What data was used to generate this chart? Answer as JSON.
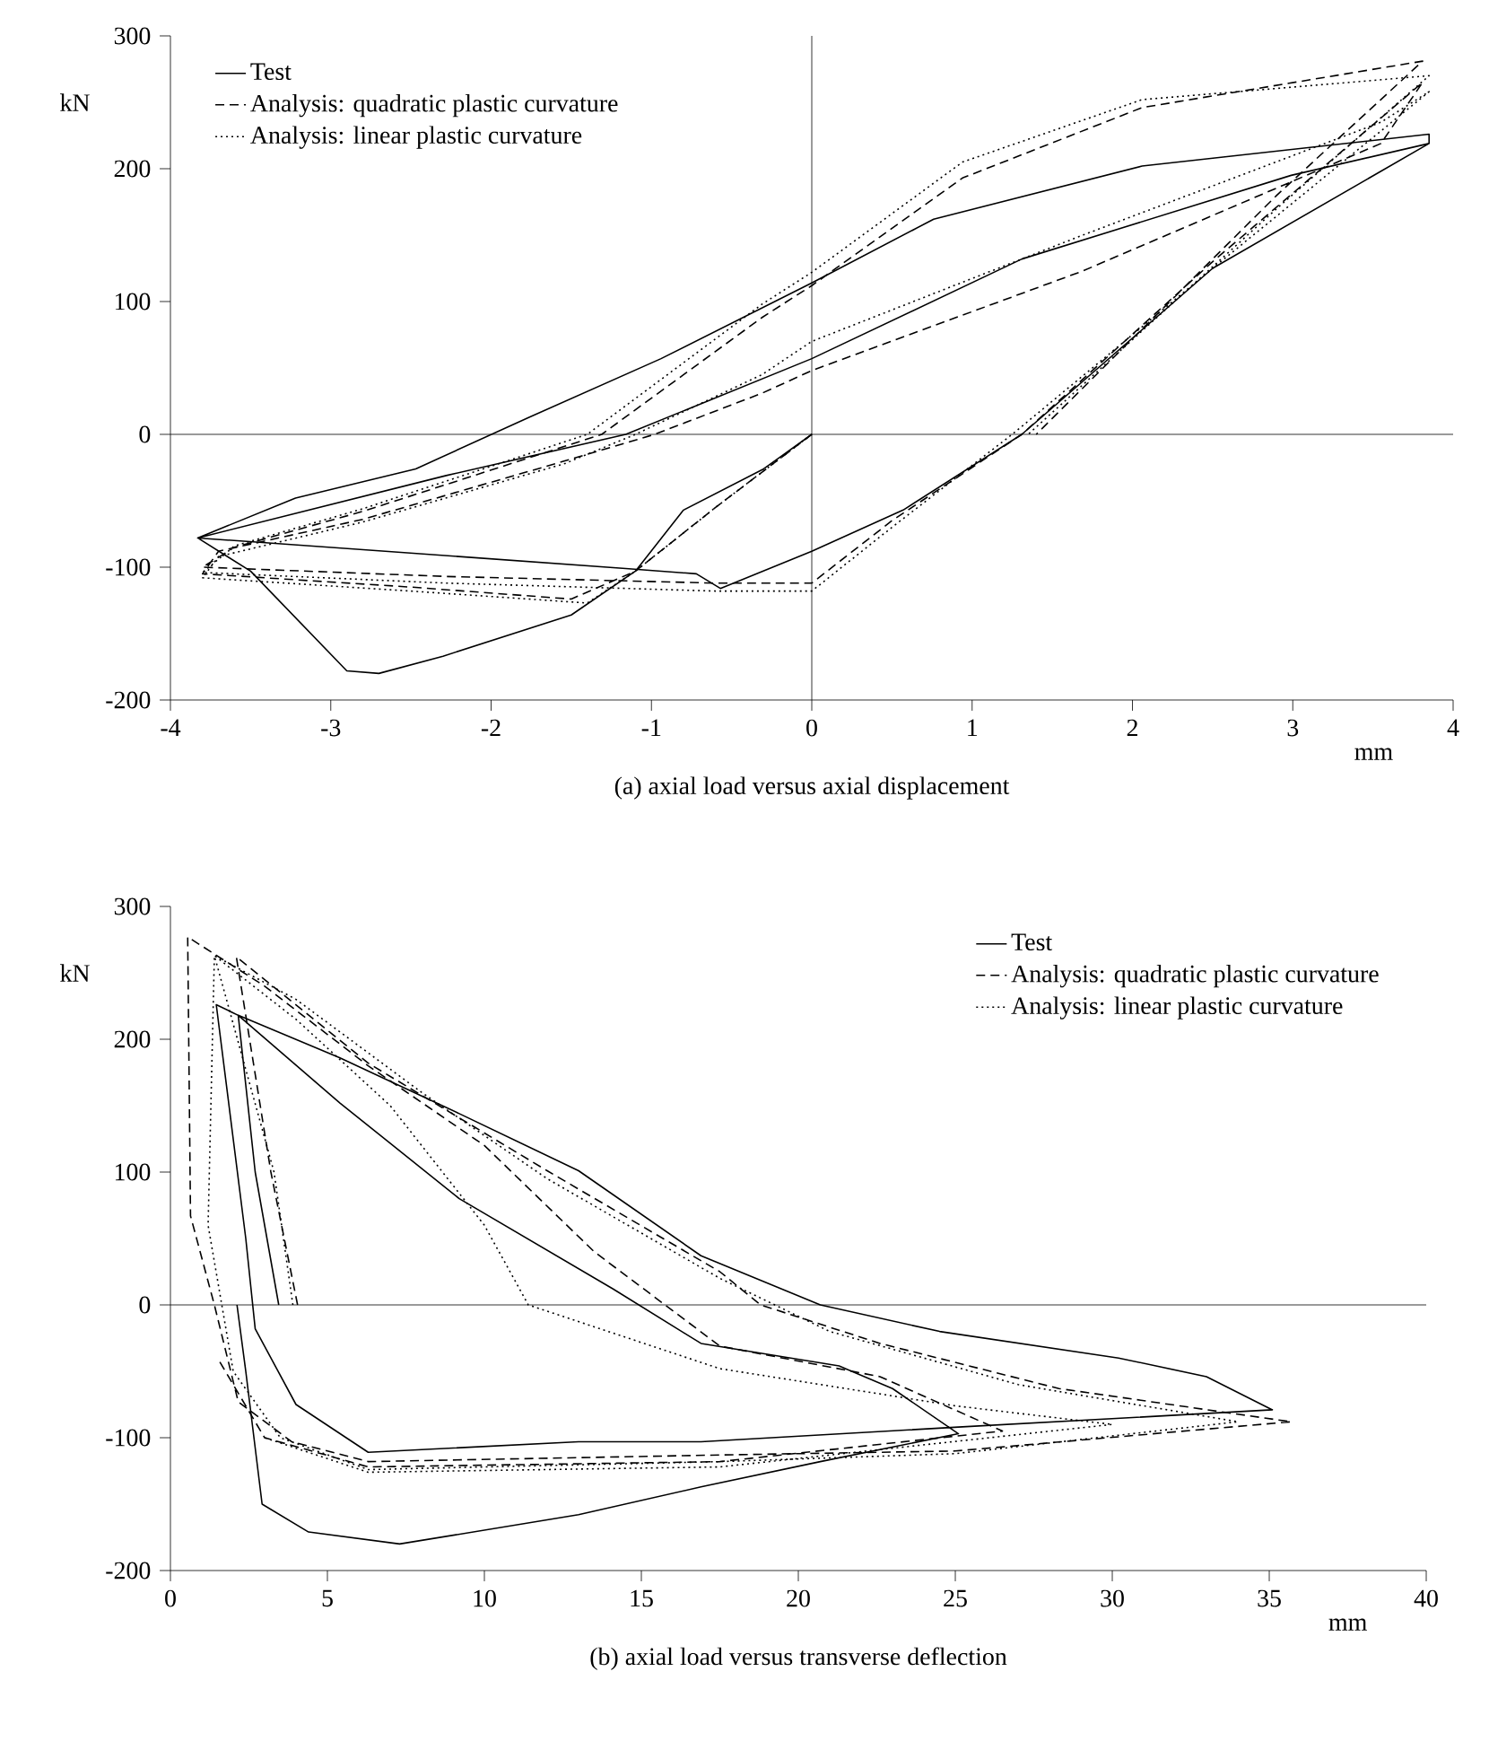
{
  "chart_data": [
    {
      "type": "line",
      "title": "(a) axial load versus axial displacement",
      "xlabel": "mm",
      "ylabel": "kN",
      "xlim": [
        -4,
        4
      ],
      "ylim": [
        -200,
        300
      ],
      "xticks": [
        -4,
        -3,
        -2,
        -1,
        0,
        1,
        2,
        3,
        4
      ],
      "yticks": [
        -200,
        -100,
        0,
        100,
        200,
        300
      ],
      "legend": "top left",
      "ref_lines": [
        {
          "axis": "y",
          "value": 0
        },
        {
          "axis": "x",
          "value": 0
        }
      ],
      "series": [
        {
          "name": "Test",
          "color": "#000000",
          "line_style": "solid",
          "x": [
            0,
            -0.3,
            -0.8,
            -1.1,
            -1.5,
            -2.3,
            -2.7,
            -2.9,
            -3.5,
            -3.83,
            -2.66,
            -1.16,
            -0.72,
            -0.57,
            0,
            0.57,
            1.31,
            2.5,
            3.85,
            3.85,
            2.06,
            0.76,
            0,
            -0.94,
            -1.76,
            -2.47,
            -3.22,
            -3.83,
            -2.28,
            -1.16,
            0,
            1.31,
            2.99,
            3.85
          ],
          "values": [
            0,
            -26,
            -57,
            -103,
            -136,
            -167,
            -180,
            -178,
            -103,
            -78,
            -88,
            -101,
            -105,
            -116,
            -88,
            -57,
            0,
            125,
            219,
            226,
            202,
            162,
            114,
            57,
            13,
            -26,
            -48,
            -78,
            -31,
            0,
            57,
            132,
            195,
            219
          ]
        },
        {
          "name": "Analysis: quadratic plastic curvature",
          "color": "#000000",
          "line_style": "dashed",
          "x": [
            0,
            -0.6,
            -1.1,
            -1.5,
            -2.5,
            -3.8,
            -3.7,
            -2.8,
            -1.54,
            -0.98,
            -0.31,
            0,
            1.69,
            3.55,
            3.81,
            2.5,
            1.31,
            0.5,
            0,
            -0.6,
            -2.28,
            -3.8,
            -3.6,
            -2.8,
            -1.31,
            -0.31,
            0,
            0.94,
            2.06,
            3.81,
            2.9,
            1.4
          ],
          "values": [
            0,
            -55,
            -103,
            -124,
            -115,
            -105,
            -88,
            -64,
            -20,
            0,
            31,
            48,
            123,
            219,
            265,
            130,
            0,
            -65,
            -112,
            -112,
            -107,
            -100,
            -85,
            -58,
            0,
            88,
            112,
            193,
            246,
            281,
            180,
            0
          ]
        },
        {
          "name": "Analysis: linear plastic curvature",
          "color": "#000000",
          "line_style": "dotted",
          "x": [
            0,
            -0.6,
            -1.1,
            -1.4,
            -2.5,
            -3.8,
            -3.7,
            -2.8,
            -1.54,
            -1.1,
            -0.31,
            0,
            1.69,
            3.55,
            3.85,
            2.5,
            1.25,
            0.5,
            0,
            -0.6,
            -2.28,
            -3.8,
            -3.6,
            -2.8,
            -1.4,
            -0.31,
            0,
            0.94,
            2.06,
            3.85,
            2.9,
            1.35
          ],
          "values": [
            0,
            -55,
            -103,
            -127,
            -118,
            -108,
            -92,
            -66,
            -22,
            0,
            45,
            70,
            150,
            235,
            258,
            125,
            0,
            -70,
            -118,
            -118,
            -112,
            -104,
            -84,
            -56,
            0,
            98,
            122,
            205,
            252,
            270,
            170,
            0
          ]
        }
      ]
    },
    {
      "type": "line",
      "title": "(b) axial load versus transverse deflection",
      "xlabel": "mm",
      "ylabel": "kN",
      "xlim": [
        0,
        40
      ],
      "ylim": [
        -200,
        300
      ],
      "xticks": [
        0,
        5,
        10,
        15,
        20,
        25,
        30,
        35,
        40
      ],
      "yticks": [
        -200,
        -100,
        0,
        100,
        200,
        300
      ],
      "legend": "top right",
      "ref_lines": [
        {
          "axis": "y",
          "value": 0
        }
      ],
      "series": [
        {
          "name": "Test",
          "color": "#000000",
          "line_style": "solid",
          "x": [
            3.45,
            2.7,
            2.16,
            5.4,
            9.2,
            13,
            16.9,
            20.7,
            24.5,
            30.2,
            33,
            35.1,
            25.1,
            16.9,
            13,
            6.3,
            4,
            2.7,
            2.4,
            1.46,
            2.16,
            5.4,
            9.2,
            14.1,
            16.9,
            21.3,
            23,
            25.1,
            20.7,
            16.9,
            13,
            7.3,
            4.4,
            2.92,
            2.4,
            2.12
          ],
          "values": [
            0,
            100,
            218,
            186,
            144,
            101,
            37,
            0,
            -20,
            -40,
            -54,
            -79,
            -92,
            -103,
            -103,
            -111,
            -75,
            -18,
            50,
            226,
            218,
            152,
            80,
            12,
            -29,
            -46,
            -63,
            -97,
            -118,
            -137,
            -158,
            -180,
            -171,
            -150,
            -50,
            0
          ]
        },
        {
          "name": "Analysis: quadratic plastic curvature",
          "color": "#000000",
          "line_style": "dashed",
          "x": [
            4.05,
            3.2,
            2.1,
            6.3,
            12,
            17.5,
            18.8,
            22.6,
            28.3,
            35.7,
            25,
            17.5,
            6.3,
            3.86,
            2.16,
            1.4,
            0.64,
            0.55,
            3,
            6.3,
            10,
            13.5,
            17.5,
            22.6,
            26.5,
            17.5,
            6.3,
            3,
            1.5
          ],
          "values": [
            0,
            100,
            262,
            182,
            101,
            25,
            0,
            -29,
            -63,
            -88,
            -110,
            -113,
            -118,
            -103,
            -73,
            0,
            67,
            277,
            240,
            180,
            120,
            40,
            -31,
            -54,
            -95,
            -118,
            -122,
            -100,
            -40
          ]
        },
        {
          "name": "Analysis: linear plastic curvature",
          "color": "#000000",
          "line_style": "dotted",
          "x": [
            3.9,
            3.3,
            1.4,
            4,
            8,
            12,
            17.5,
            21,
            27,
            34,
            25,
            17.5,
            6.3,
            3.5,
            2,
            1.2,
            1.4,
            4,
            7,
            10,
            11.4,
            17.5,
            25,
            30,
            17.5,
            6.3,
            3
          ],
          "values": [
            0,
            100,
            263,
            230,
            160,
            95,
            20,
            -20,
            -60,
            -88,
            -112,
            -118,
            -124,
            -100,
            -50,
            60,
            263,
            215,
            150,
            60,
            0,
            -48,
            -76,
            -90,
            -122,
            -126,
            -100
          ]
        }
      ]
    }
  ]
}
